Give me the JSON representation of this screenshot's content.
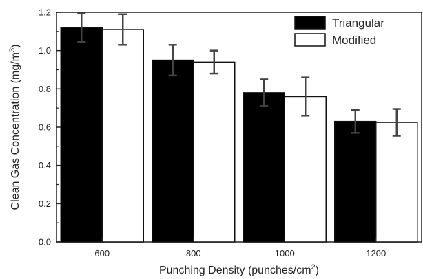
{
  "chart_data": {
    "type": "bar",
    "categories": [
      "600",
      "800",
      "1000",
      "1200"
    ],
    "series": [
      {
        "name": "Triangular",
        "color": "#000000",
        "values": [
          1.12,
          0.95,
          0.78,
          0.63
        ],
        "errors": [
          0.075,
          0.08,
          0.07,
          0.06
        ]
      },
      {
        "name": "Modified",
        "color": "#ffffff",
        "values": [
          1.11,
          0.94,
          0.76,
          0.625
        ],
        "errors": [
          0.08,
          0.06,
          0.1,
          0.07
        ]
      }
    ],
    "xlabel": {
      "main": "Punching Density (punches/cm",
      "sup": "2",
      "end": ")"
    },
    "ylabel": {
      "main": "Clean Gas Concentration (mg/m",
      "sup": "3",
      "end": ")"
    },
    "ylim": [
      0,
      1.2
    ],
    "yticks": [
      "0.0",
      "0.2",
      "0.4",
      "0.6",
      "0.8",
      "1.0",
      "1.2"
    ],
    "grid": false,
    "legend_position": "top-right"
  }
}
